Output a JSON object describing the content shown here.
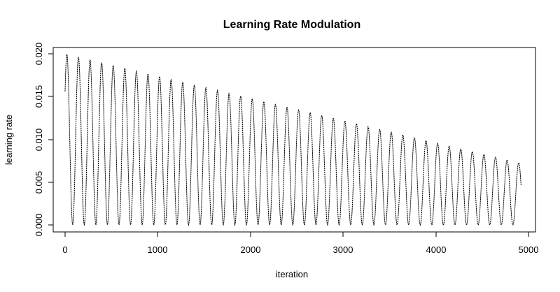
{
  "chart_data": {
    "type": "line",
    "title": "Learning Rate Modulation",
    "xlabel": "iteration",
    "ylabel": "learning rate",
    "xlim": [
      0,
      5000
    ],
    "ylim": [
      0,
      0.02
    ],
    "xticks": [
      0,
      1000,
      2000,
      3000,
      4000,
      5000
    ],
    "xtick_labels": [
      "0",
      "1000",
      "2000",
      "3000",
      "4000",
      "5000"
    ],
    "yticks": [
      0,
      0.005,
      0.01,
      0.015,
      0.02
    ],
    "ytick_labels": [
      "0.000",
      "0.005",
      "0.010",
      "0.015",
      "0.020"
    ],
    "grid": false,
    "legend": "none",
    "series": [
      {
        "name": "learning rate",
        "line_style": "dotted",
        "color": "#000000",
        "x_start": 0,
        "x_end": 4920,
        "x_step": 4,
        "cycle_length": 125,
        "phase": 0.6,
        "envelope_start": 0.02,
        "envelope_end": 0.0072,
        "minimum": 0.0,
        "formula": "lr = envelope(x) * (1 + sin(2*pi*x/cycle_length + phase)) / 2"
      }
    ]
  }
}
